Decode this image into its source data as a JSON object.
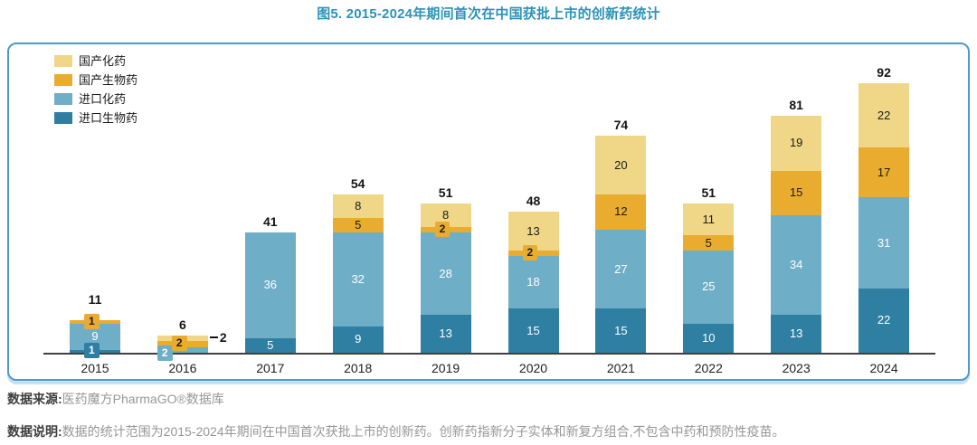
{
  "page": {
    "title": "图5. 2015-2024年期间首次在中国获批上市的创新药统计"
  },
  "footer": {
    "source_label": "数据来源:",
    "source_text": "医药魔方PharmaGO®数据库",
    "note_label": "数据说明:",
    "note_text": "数据的统计范围为2015-2024年期间在中国首次获批上市的创新药。创新药指新分子实体和新复方组合,不包含中药和预防性疫苗。"
  },
  "colors": {
    "title": "#2D93B6",
    "panel_border": "#4E9AC9",
    "axis": "#3F3F3F",
    "total_label": "#141414"
  },
  "chart_data": {
    "type": "bar",
    "stacked": true,
    "grid": false,
    "legend_position": "top-left",
    "title": "图5. 2015-2024年期间首次在中国获批上市的创新药统计",
    "xlabel": "",
    "ylabel": "",
    "categories": [
      "2015",
      "2016",
      "2017",
      "2018",
      "2019",
      "2020",
      "2021",
      "2022",
      "2023",
      "2024"
    ],
    "series": [
      {
        "name": "国产化药",
        "color": "#F0D787",
        "label_color": "#1b1b1b",
        "values": [
          0,
          2,
          0,
          8,
          8,
          13,
          20,
          11,
          19,
          22
        ]
      },
      {
        "name": "国产生物药",
        "color": "#E9AC2F",
        "label_color": "#1b1b1b",
        "values": [
          1,
          2,
          0,
          5,
          2,
          2,
          12,
          5,
          15,
          17
        ]
      },
      {
        "name": "进口化药",
        "color": "#6FAEC7",
        "label_color": "#ffffff",
        "values": [
          9,
          2,
          36,
          32,
          28,
          18,
          27,
          25,
          34,
          31
        ]
      },
      {
        "name": "进口生物药",
        "color": "#2E7FA2",
        "label_color": "#ffffff",
        "values": [
          1,
          0,
          5,
          9,
          13,
          15,
          15,
          10,
          13,
          22
        ]
      }
    ],
    "totals": [
      11,
      6,
      41,
      54,
      51,
      48,
      74,
      51,
      81,
      92
    ],
    "ylim": [
      0,
      100
    ]
  }
}
